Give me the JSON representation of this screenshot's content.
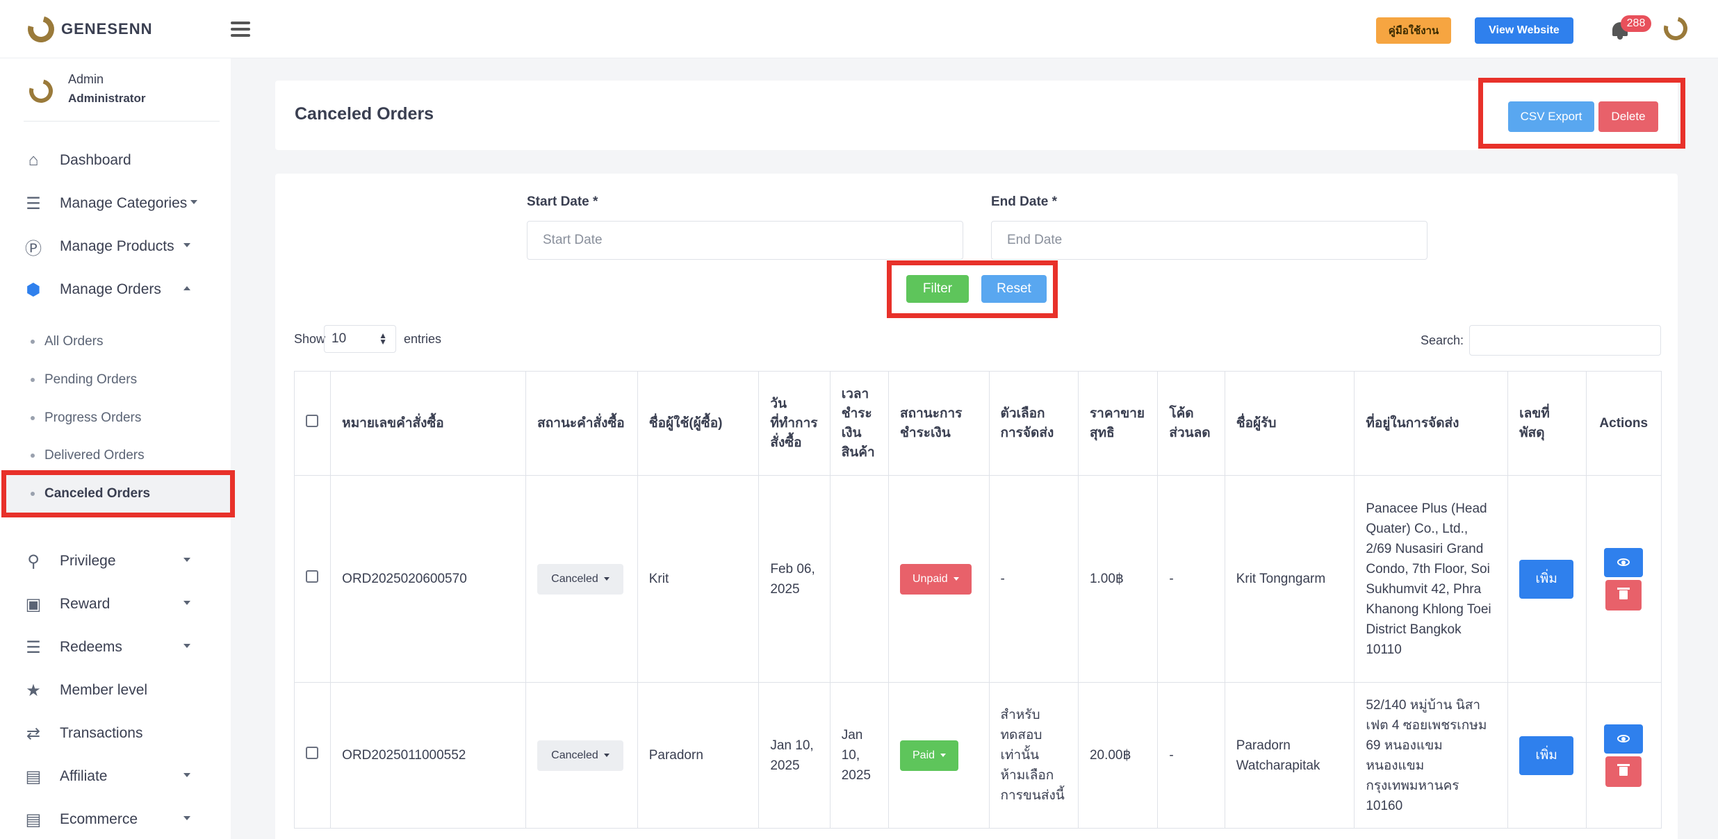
{
  "brand": {
    "name": "GENESENN"
  },
  "topbar": {
    "manual_label": "คู่มือใช้งาน",
    "website_label": "View Website",
    "notification_count": "288"
  },
  "sidebar": {
    "profile_name": "Admin",
    "profile_role": "Administrator",
    "items": [
      {
        "label": "Dashboard",
        "icon": "home-icon"
      },
      {
        "label": "Manage Categories",
        "icon": "list-icon"
      },
      {
        "label": "Manage Products",
        "icon": "product-icon"
      },
      {
        "label": "Manage Orders",
        "icon": "cube-icon"
      },
      {
        "label": "Privilege",
        "icon": "award-icon"
      },
      {
        "label": "Reward",
        "icon": "gift-icon"
      },
      {
        "label": "Redeems",
        "icon": "layers-icon"
      },
      {
        "label": "Member level",
        "icon": "trophy-icon"
      },
      {
        "label": "Transactions",
        "icon": "shuffle-icon"
      },
      {
        "label": "Affiliate",
        "icon": "table-icon"
      },
      {
        "label": "Ecommerce",
        "icon": "table-icon"
      }
    ],
    "order_subitems": [
      "All Orders",
      "Pending Orders",
      "Progress Orders",
      "Delivered Orders",
      "Canceled Orders"
    ]
  },
  "header": {
    "title": "Canceled Orders",
    "csv_label": "CSV Export",
    "delete_label": "Delete"
  },
  "filters": {
    "start_label": "Start Date *",
    "start_placeholder": "Start Date",
    "end_label": "End Date *",
    "end_placeholder": "End Date",
    "filter_label": "Filter",
    "reset_label": "Reset"
  },
  "table_controls": {
    "show_label": "Show",
    "show_value": "10",
    "entries_label": "entries",
    "search_label": "Search:"
  },
  "table": {
    "headers": [
      "หมายเลขคำสั่งซื้อ",
      "สถานะคำสั่งซื้อ",
      "ชื่อผู้ใช้(ผู้ซื้อ)",
      "วันที่ทำการสั่งซื้อ",
      "เวลาชำระเงินสินค้า",
      "สถานะการชำระเงิน",
      "ตัวเลือกการจัดส่ง",
      "ราคาขายสุทธิ",
      "โค้ดส่วนลด",
      "ชื่อผู้รับ",
      "ที่อยู่ในการจัดส่ง",
      "เลขที่พัสดุ",
      "Actions"
    ],
    "rows": [
      {
        "order_no": "ORD2025020600570",
        "status": "Canceled",
        "buyer": "Krit",
        "order_date": "Feb 06, 2025",
        "pay_time": "",
        "payment_status": "Unpaid",
        "shipping": "-",
        "price": "1.00฿",
        "discount": "-",
        "recipient": "Krit Tongngarm",
        "address": "Panacee Plus (Head Quater) Co., Ltd., 2/69 Nusasiri Grand Condo, 7th Floor, Soi Sukhumvit 42, Phra Khanong Khlong Toei District Bangkok 10110",
        "tracking_label": "เพิ่ม"
      },
      {
        "order_no": "ORD2025011000552",
        "status": "Canceled",
        "buyer": "Paradorn",
        "order_date": "Jan 10, 2025",
        "pay_time": "Jan 10, 2025",
        "payment_status": "Paid",
        "shipping": "สำหรับทดสอบเท่านั้น ห้ามเลือกการขนส่งนี้",
        "price": "20.00฿",
        "discount": "-",
        "recipient": "Paradorn Watcharapitak",
        "address": "52/140 หมู่บ้าน นิสาเฟต 4 ซอยเพชรเกษม 69 หนองแขม หนองแขม กรุงเทพมหานคร 10160",
        "tracking_label": "เพิ่ม"
      }
    ]
  },
  "colors": {
    "accent": "#2f80ed",
    "success": "#5ec55b",
    "danger": "#e8616a",
    "warning": "#f6a541",
    "highlight": "#e8312a"
  }
}
